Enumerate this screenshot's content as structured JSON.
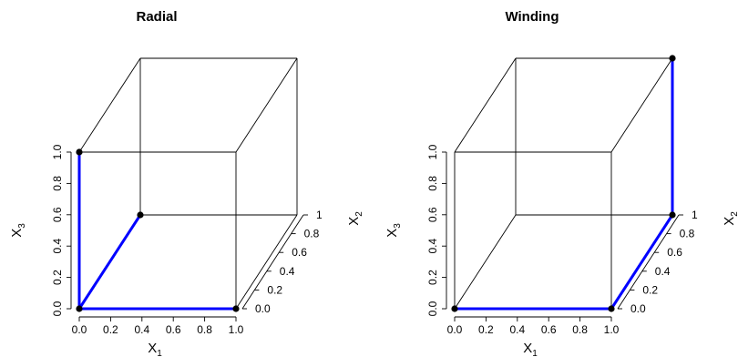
{
  "chart_data": [
    {
      "type": "line",
      "title": "Radial",
      "axes": {
        "x1": {
          "label": "X",
          "subscript": "1",
          "ticks": [
            "0.0",
            "0.2",
            "0.4",
            "0.6",
            "0.8",
            "1.0"
          ],
          "range": [
            0,
            1
          ]
        },
        "x2": {
          "label": "X",
          "subscript": "2",
          "ticks": [
            "0.0",
            "0.2",
            "0.4",
            "0.6",
            "0.8",
            "1"
          ],
          "range": [
            0,
            1
          ]
        },
        "x3": {
          "label": "X",
          "subscript": "3",
          "ticks": [
            "0.0",
            "0.2",
            "0.4",
            "0.6",
            "0.8",
            "1.0"
          ],
          "range": [
            0,
            1
          ]
        }
      },
      "points": [
        [
          0,
          0,
          0
        ],
        [
          1,
          0,
          0
        ],
        [
          0,
          1,
          0
        ],
        [
          0,
          0,
          1
        ]
      ],
      "segments": [
        [
          [
            0,
            0,
            0
          ],
          [
            1,
            0,
            0
          ]
        ],
        [
          [
            0,
            0,
            0
          ],
          [
            0,
            1,
            0
          ]
        ],
        [
          [
            0,
            0,
            0
          ],
          [
            0,
            0,
            1
          ]
        ]
      ],
      "path_color": "#0000ff",
      "point_color": "#000000"
    },
    {
      "type": "line",
      "title": "Winding",
      "axes": {
        "x1": {
          "label": "X",
          "subscript": "1",
          "ticks": [
            "0.0",
            "0.2",
            "0.4",
            "0.6",
            "0.8",
            "1.0"
          ],
          "range": [
            0,
            1
          ]
        },
        "x2": {
          "label": "X",
          "subscript": "2",
          "ticks": [
            "0.0",
            "0.2",
            "0.4",
            "0.6",
            "0.8",
            "1"
          ],
          "range": [
            0,
            1
          ]
        },
        "x3": {
          "label": "X",
          "subscript": "3",
          "ticks": [
            "0.0",
            "0.2",
            "0.4",
            "0.6",
            "0.8",
            "1.0"
          ],
          "range": [
            0,
            1
          ]
        }
      },
      "points": [
        [
          0,
          0,
          0
        ],
        [
          1,
          0,
          0
        ],
        [
          1,
          1,
          0
        ],
        [
          1,
          1,
          1
        ]
      ],
      "segments": [
        [
          [
            0,
            0,
            0
          ],
          [
            1,
            0,
            0
          ]
        ],
        [
          [
            1,
            0,
            0
          ],
          [
            1,
            1,
            0
          ]
        ],
        [
          [
            1,
            1,
            0
          ],
          [
            1,
            1,
            1
          ]
        ]
      ],
      "path_color": "#0000ff",
      "point_color": "#000000"
    }
  ]
}
